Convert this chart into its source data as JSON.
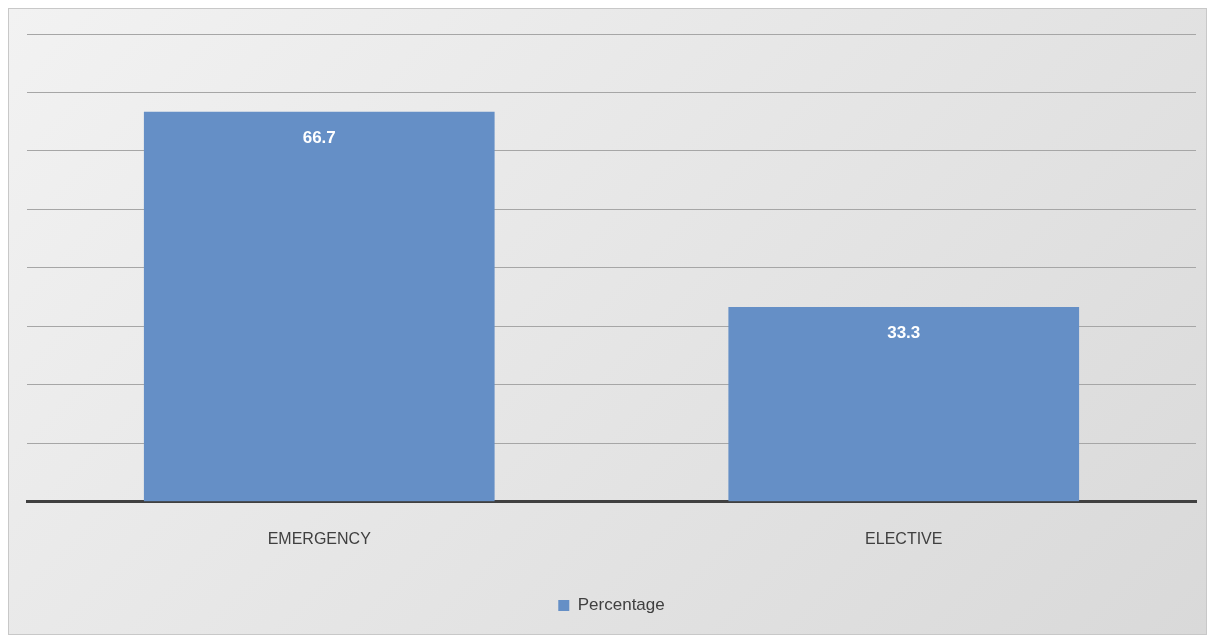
{
  "chart_data": {
    "type": "bar",
    "categories": [
      "EMERGENCY",
      "ELECTIVE"
    ],
    "series": [
      {
        "name": "Percentage",
        "color": "#658fc6",
        "values": [
          66.7,
          33.3
        ]
      }
    ],
    "ylim": [
      0,
      80
    ],
    "yticks": [
      {
        "value": 0,
        "label": null
      },
      {
        "value": 10,
        "label": null
      },
      {
        "value": 20,
        "label": null
      },
      {
        "value": 30,
        "label": null
      },
      {
        "value": 40,
        "label": null
      },
      {
        "value": 50,
        "label": null
      },
      {
        "value": 60,
        "label": null
      },
      {
        "value": 70,
        "label": null
      },
      {
        "value": 80,
        "label": null
      }
    ],
    "grid": "y",
    "tick_labels": "x",
    "legend": "bottom",
    "data_labels": true
  }
}
